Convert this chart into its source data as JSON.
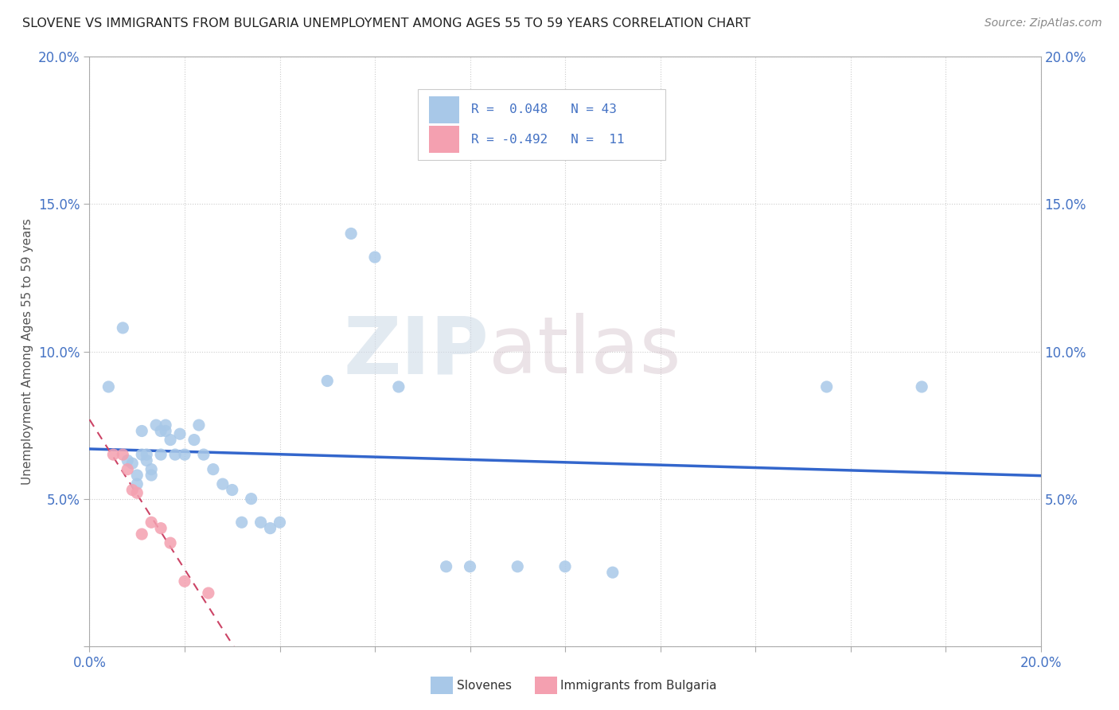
{
  "title": "SLOVENE VS IMMIGRANTS FROM BULGARIA UNEMPLOYMENT AMONG AGES 55 TO 59 YEARS CORRELATION CHART",
  "source": "Source: ZipAtlas.com",
  "ylabel": "Unemployment Among Ages 55 to 59 years",
  "xlim": [
    0.0,
    0.2
  ],
  "ylim": [
    0.0,
    0.2
  ],
  "xticks": [
    0.0,
    0.02,
    0.04,
    0.06,
    0.08,
    0.1,
    0.12,
    0.14,
    0.16,
    0.18,
    0.2
  ],
  "yticks": [
    0.0,
    0.05,
    0.1,
    0.15,
    0.2
  ],
  "ytick_labels_left": [
    "",
    "5.0%",
    "10.0%",
    "15.0%",
    "20.0%"
  ],
  "ytick_labels_right": [
    "",
    "5.0%",
    "10.0%",
    "15.0%",
    "20.0%"
  ],
  "xtick_labels": [
    "0.0%",
    "",
    "",
    "",
    "",
    "",
    "",
    "",
    "",
    "",
    "20.0%"
  ],
  "slovene_color": "#a8c8e8",
  "bulgaria_color": "#f4a0b0",
  "trend_slovene_color": "#3366cc",
  "trend_bulgaria_color": "#cc4466",
  "watermark_zip": "ZIP",
  "watermark_atlas": "atlas",
  "slovene_x": [
    0.004,
    0.007,
    0.008,
    0.009,
    0.01,
    0.01,
    0.011,
    0.011,
    0.012,
    0.012,
    0.013,
    0.013,
    0.014,
    0.015,
    0.015,
    0.016,
    0.016,
    0.017,
    0.018,
    0.019,
    0.02,
    0.022,
    0.023,
    0.024,
    0.026,
    0.028,
    0.03,
    0.032,
    0.034,
    0.036,
    0.038,
    0.04,
    0.05,
    0.055,
    0.06,
    0.065,
    0.075,
    0.08,
    0.09,
    0.1,
    0.11,
    0.155,
    0.175
  ],
  "slovene_y": [
    0.088,
    0.108,
    0.063,
    0.062,
    0.058,
    0.055,
    0.073,
    0.065,
    0.063,
    0.065,
    0.06,
    0.058,
    0.075,
    0.073,
    0.065,
    0.075,
    0.073,
    0.07,
    0.065,
    0.072,
    0.065,
    0.07,
    0.075,
    0.065,
    0.06,
    0.055,
    0.053,
    0.042,
    0.05,
    0.042,
    0.04,
    0.042,
    0.09,
    0.14,
    0.132,
    0.088,
    0.027,
    0.027,
    0.027,
    0.027,
    0.025,
    0.088,
    0.088
  ],
  "bulgaria_x": [
    0.005,
    0.007,
    0.008,
    0.009,
    0.01,
    0.011,
    0.013,
    0.015,
    0.017,
    0.02,
    0.025
  ],
  "bulgaria_y": [
    0.065,
    0.065,
    0.06,
    0.053,
    0.052,
    0.038,
    0.042,
    0.04,
    0.035,
    0.022,
    0.018
  ],
  "legend_line1": "R =  0.048   N = 43",
  "legend_line2": "R = -0.492   N =  11"
}
